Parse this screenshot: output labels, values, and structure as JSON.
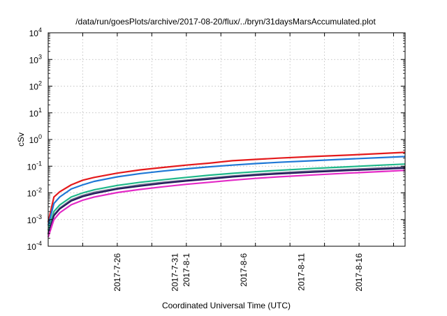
{
  "chart_data": {
    "type": "line",
    "title": "/data/run/goesPlots/archive/2017-08-20/flux/../bryn/31daysMarsAccumulated.plot",
    "xlabel": "Coordinated Universal Time (UTC)",
    "ylabel": "cSv",
    "y_scale": "log",
    "ylim": [
      0.0001,
      10000
    ],
    "xlim": [
      "2017-07-20",
      "2017-08-20"
    ],
    "grid": true,
    "legend": "none",
    "y_ticks": [
      {
        "base": "10",
        "exp": "-4",
        "value": 0.0001
      },
      {
        "base": "10",
        "exp": "-3",
        "value": 0.001
      },
      {
        "base": "10",
        "exp": "-2",
        "value": 0.01
      },
      {
        "base": "10",
        "exp": "-1",
        "value": 0.1
      },
      {
        "base": "10",
        "exp": "0",
        "value": 1
      },
      {
        "base": "10",
        "exp": "1",
        "value": 10
      },
      {
        "base": "10",
        "exp": "2",
        "value": 100
      },
      {
        "base": "10",
        "exp": "3",
        "value": 1000
      },
      {
        "base": "10",
        "exp": "4",
        "value": 10000
      }
    ],
    "x_ticks": [
      {
        "date": "2017-07-26",
        "label": "2017-7-26"
      },
      {
        "date": "2017-07-31",
        "label": "2017-7-31"
      },
      {
        "date": "2017-08-01",
        "label": "2017-8-1"
      },
      {
        "date": "2017-08-06",
        "label": "2017-8-6"
      },
      {
        "date": "2017-08-11",
        "label": "2017-8-11"
      },
      {
        "date": "2017-08-16",
        "label": "2017-8-16"
      }
    ],
    "x_grid_dates": [
      "2017-07-23",
      "2017-07-26",
      "2017-07-29",
      "2017-08-01",
      "2017-08-04",
      "2017-08-07",
      "2017-08-10",
      "2017-08-13",
      "2017-08-16",
      "2017-08-19"
    ],
    "series": [
      {
        "color": "#e41a1c",
        "x": [
          "2017-07-20",
          "2017-07-20T12:00",
          "2017-07-21",
          "2017-07-22",
          "2017-07-23",
          "2017-07-24",
          "2017-07-26",
          "2017-07-28",
          "2017-07-30",
          "2017-08-01",
          "2017-08-03",
          "2017-08-05",
          "2017-08-07",
          "2017-08-09",
          "2017-08-12",
          "2017-08-15",
          "2017-08-18",
          "2017-08-20"
        ],
        "y": [
          0.0008,
          0.007,
          0.011,
          0.02,
          0.03,
          0.038,
          0.055,
          0.073,
          0.09,
          0.11,
          0.13,
          0.16,
          0.18,
          0.2,
          0.23,
          0.26,
          0.3,
          0.33
        ]
      },
      {
        "color": "#1f78d6",
        "x": [
          "2017-07-20",
          "2017-07-20T12:00",
          "2017-07-21",
          "2017-07-22",
          "2017-07-23",
          "2017-07-24",
          "2017-07-26",
          "2017-07-28",
          "2017-07-30",
          "2017-08-01",
          "2017-08-03",
          "2017-08-05",
          "2017-08-07",
          "2017-08-09",
          "2017-08-12",
          "2017-08-15",
          "2017-08-18",
          "2017-08-20"
        ],
        "y": [
          0.0006,
          0.004,
          0.007,
          0.014,
          0.02,
          0.027,
          0.04,
          0.053,
          0.066,
          0.08,
          0.095,
          0.11,
          0.125,
          0.14,
          0.16,
          0.185,
          0.21,
          0.23
        ]
      },
      {
        "color": "#1fb88a",
        "x": [
          "2017-07-20",
          "2017-07-20T12:00",
          "2017-07-21",
          "2017-07-22",
          "2017-07-23",
          "2017-07-24",
          "2017-07-26",
          "2017-07-28",
          "2017-07-30",
          "2017-08-01",
          "2017-08-03",
          "2017-08-05",
          "2017-08-07",
          "2017-08-09",
          "2017-08-12",
          "2017-08-15",
          "2017-08-18",
          "2017-08-20"
        ],
        "y": [
          0.0004,
          0.002,
          0.0035,
          0.007,
          0.01,
          0.013,
          0.019,
          0.025,
          0.031,
          0.038,
          0.046,
          0.054,
          0.062,
          0.07,
          0.082,
          0.095,
          0.11,
          0.12
        ]
      },
      {
        "color": "#6a6a8a",
        "x": [
          "2017-07-20",
          "2017-07-20T12:00",
          "2017-07-21",
          "2017-07-22",
          "2017-07-23",
          "2017-07-24",
          "2017-07-26",
          "2017-07-28",
          "2017-07-30",
          "2017-08-01",
          "2017-08-03",
          "2017-08-05",
          "2017-08-07",
          "2017-08-09",
          "2017-08-12",
          "2017-08-15",
          "2017-08-18",
          "2017-08-20"
        ],
        "y": [
          0.0003,
          0.0015,
          0.0027,
          0.0055,
          0.008,
          0.0105,
          0.015,
          0.02,
          0.025,
          0.03,
          0.036,
          0.043,
          0.05,
          0.056,
          0.066,
          0.075,
          0.085,
          0.092
        ]
      },
      {
        "color": "#241a5c",
        "x": [
          "2017-07-20",
          "2017-07-20T12:00",
          "2017-07-21",
          "2017-07-22",
          "2017-07-23",
          "2017-07-24",
          "2017-07-26",
          "2017-07-28",
          "2017-07-30",
          "2017-08-01",
          "2017-08-03",
          "2017-08-05",
          "2017-08-07",
          "2017-08-09",
          "2017-08-12",
          "2017-08-15",
          "2017-08-18",
          "2017-08-20"
        ],
        "y": [
          0.00028,
          0.0014,
          0.0025,
          0.005,
          0.0073,
          0.0095,
          0.014,
          0.018,
          0.023,
          0.028,
          0.033,
          0.04,
          0.046,
          0.052,
          0.06,
          0.069,
          0.078,
          0.085
        ]
      },
      {
        "color": "#e329c6",
        "x": [
          "2017-07-20",
          "2017-07-20T12:00",
          "2017-07-21",
          "2017-07-22",
          "2017-07-23",
          "2017-07-24",
          "2017-07-26",
          "2017-07-28",
          "2017-07-30",
          "2017-08-01",
          "2017-08-03",
          "2017-08-05",
          "2017-08-07",
          "2017-08-09",
          "2017-08-12",
          "2017-08-15",
          "2017-08-18",
          "2017-08-20"
        ],
        "y": [
          0.00022,
          0.001,
          0.0018,
          0.0036,
          0.0053,
          0.007,
          0.0103,
          0.0135,
          0.017,
          0.021,
          0.025,
          0.03,
          0.035,
          0.04,
          0.047,
          0.055,
          0.063,
          0.07
        ]
      }
    ]
  }
}
